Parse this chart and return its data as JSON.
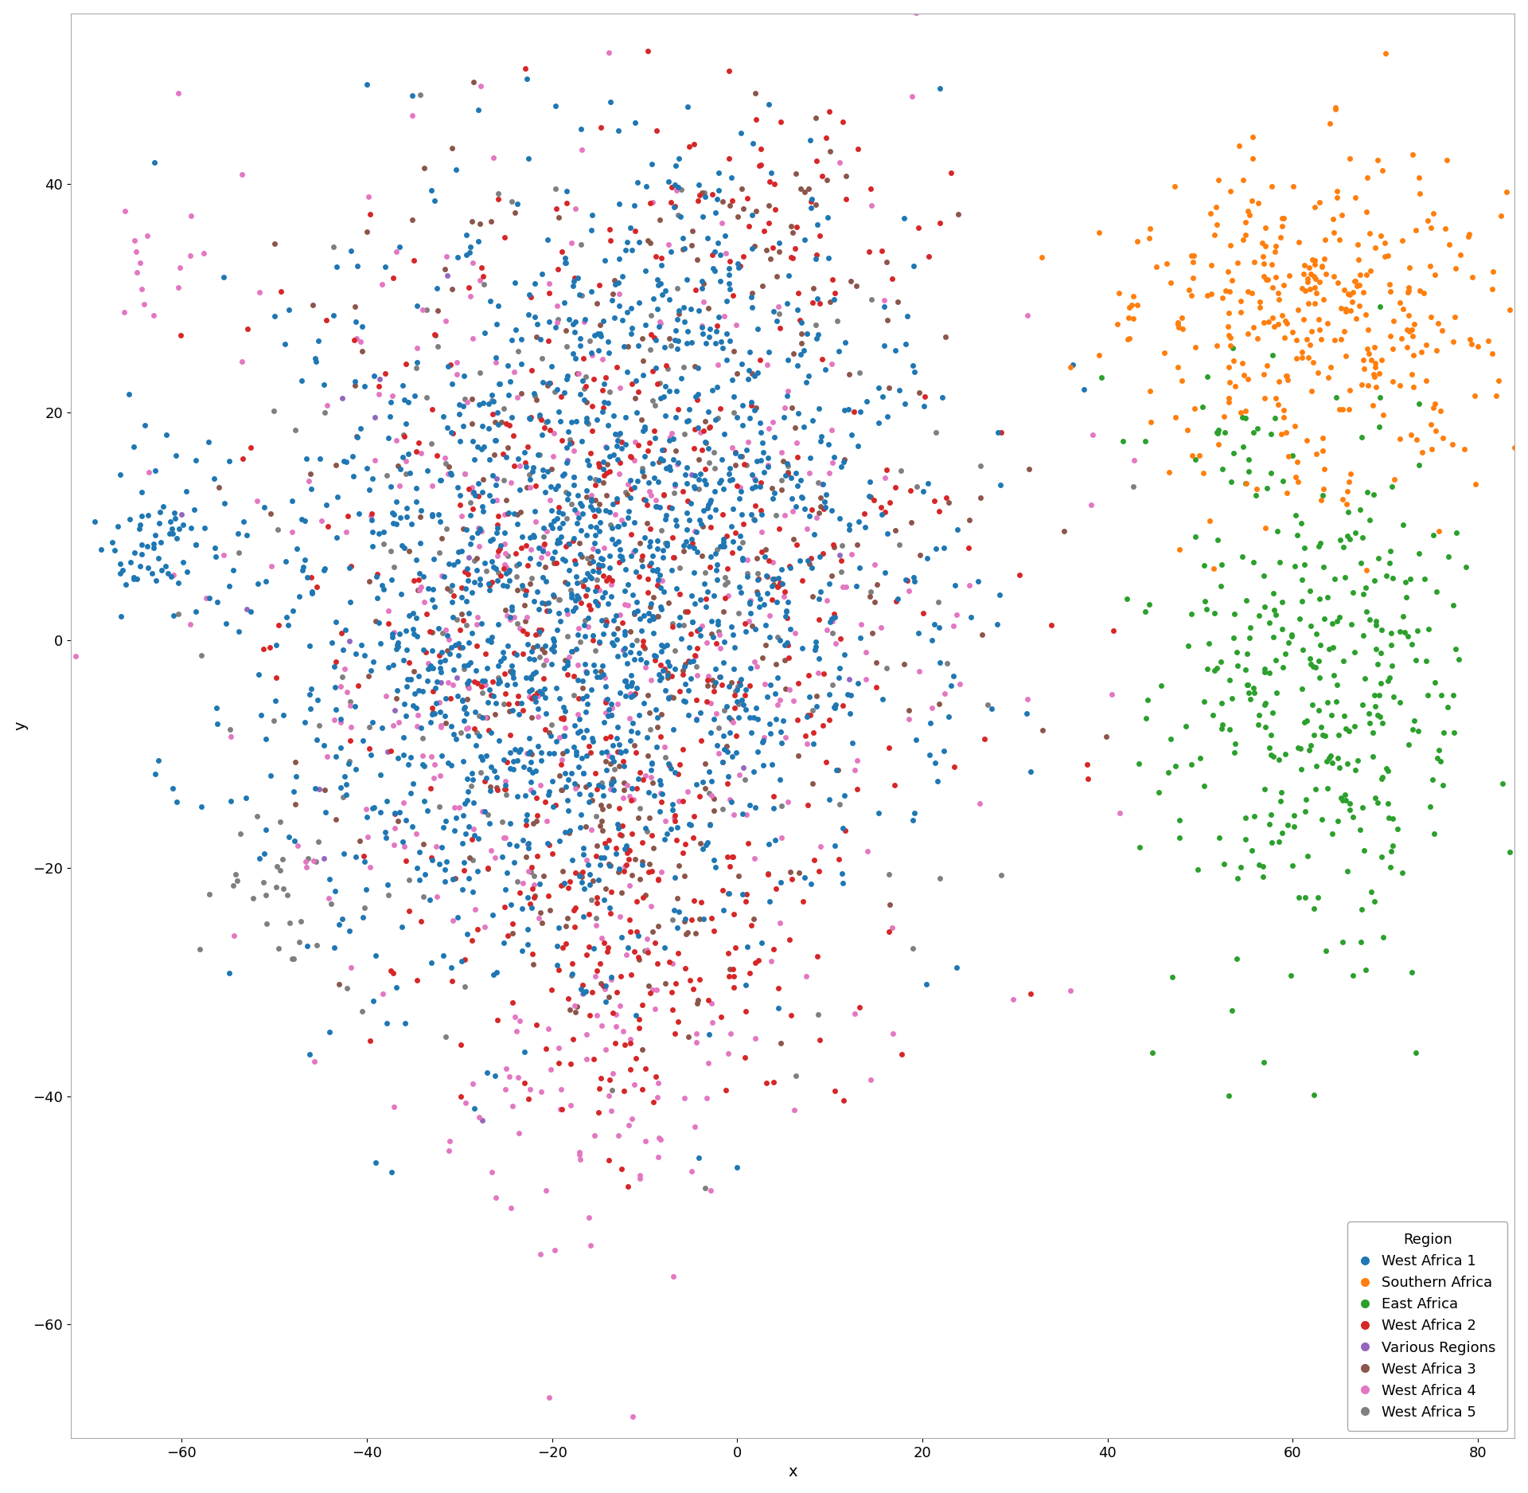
{
  "xlabel": "x",
  "ylabel": "y",
  "xlim": [
    -72,
    84
  ],
  "ylim": [
    -70,
    55
  ],
  "xticks": [
    -60,
    -40,
    -20,
    0,
    20,
    40,
    60,
    80
  ],
  "yticks": [
    -60,
    -40,
    -20,
    0,
    20,
    40
  ],
  "regions": [
    {
      "name": "West Africa 1",
      "color": "#1F77B4",
      "n": 1800
    },
    {
      "name": "Southern Africa",
      "color": "#FF7F0E",
      "n": 380
    },
    {
      "name": "East Africa",
      "color": "#2CA02C",
      "n": 380
    },
    {
      "name": "West Africa 2",
      "color": "#D62728",
      "n": 650
    },
    {
      "name": "Various Regions",
      "color": "#9467BD",
      "n": 25
    },
    {
      "name": "West Africa 3",
      "color": "#8C564B",
      "n": 370
    },
    {
      "name": "West Africa 4",
      "color": "#E377C2",
      "n": 480
    },
    {
      "name": "West Africa 5",
      "color": "#7F7F7F",
      "n": 260
    }
  ],
  "background_color": "#FFFFFF",
  "marker_size": 25,
  "alpha": 1.0,
  "legend_title": "Region",
  "axis_fontsize": 14,
  "legend_fontsize": 13,
  "tick_fontsize": 13
}
